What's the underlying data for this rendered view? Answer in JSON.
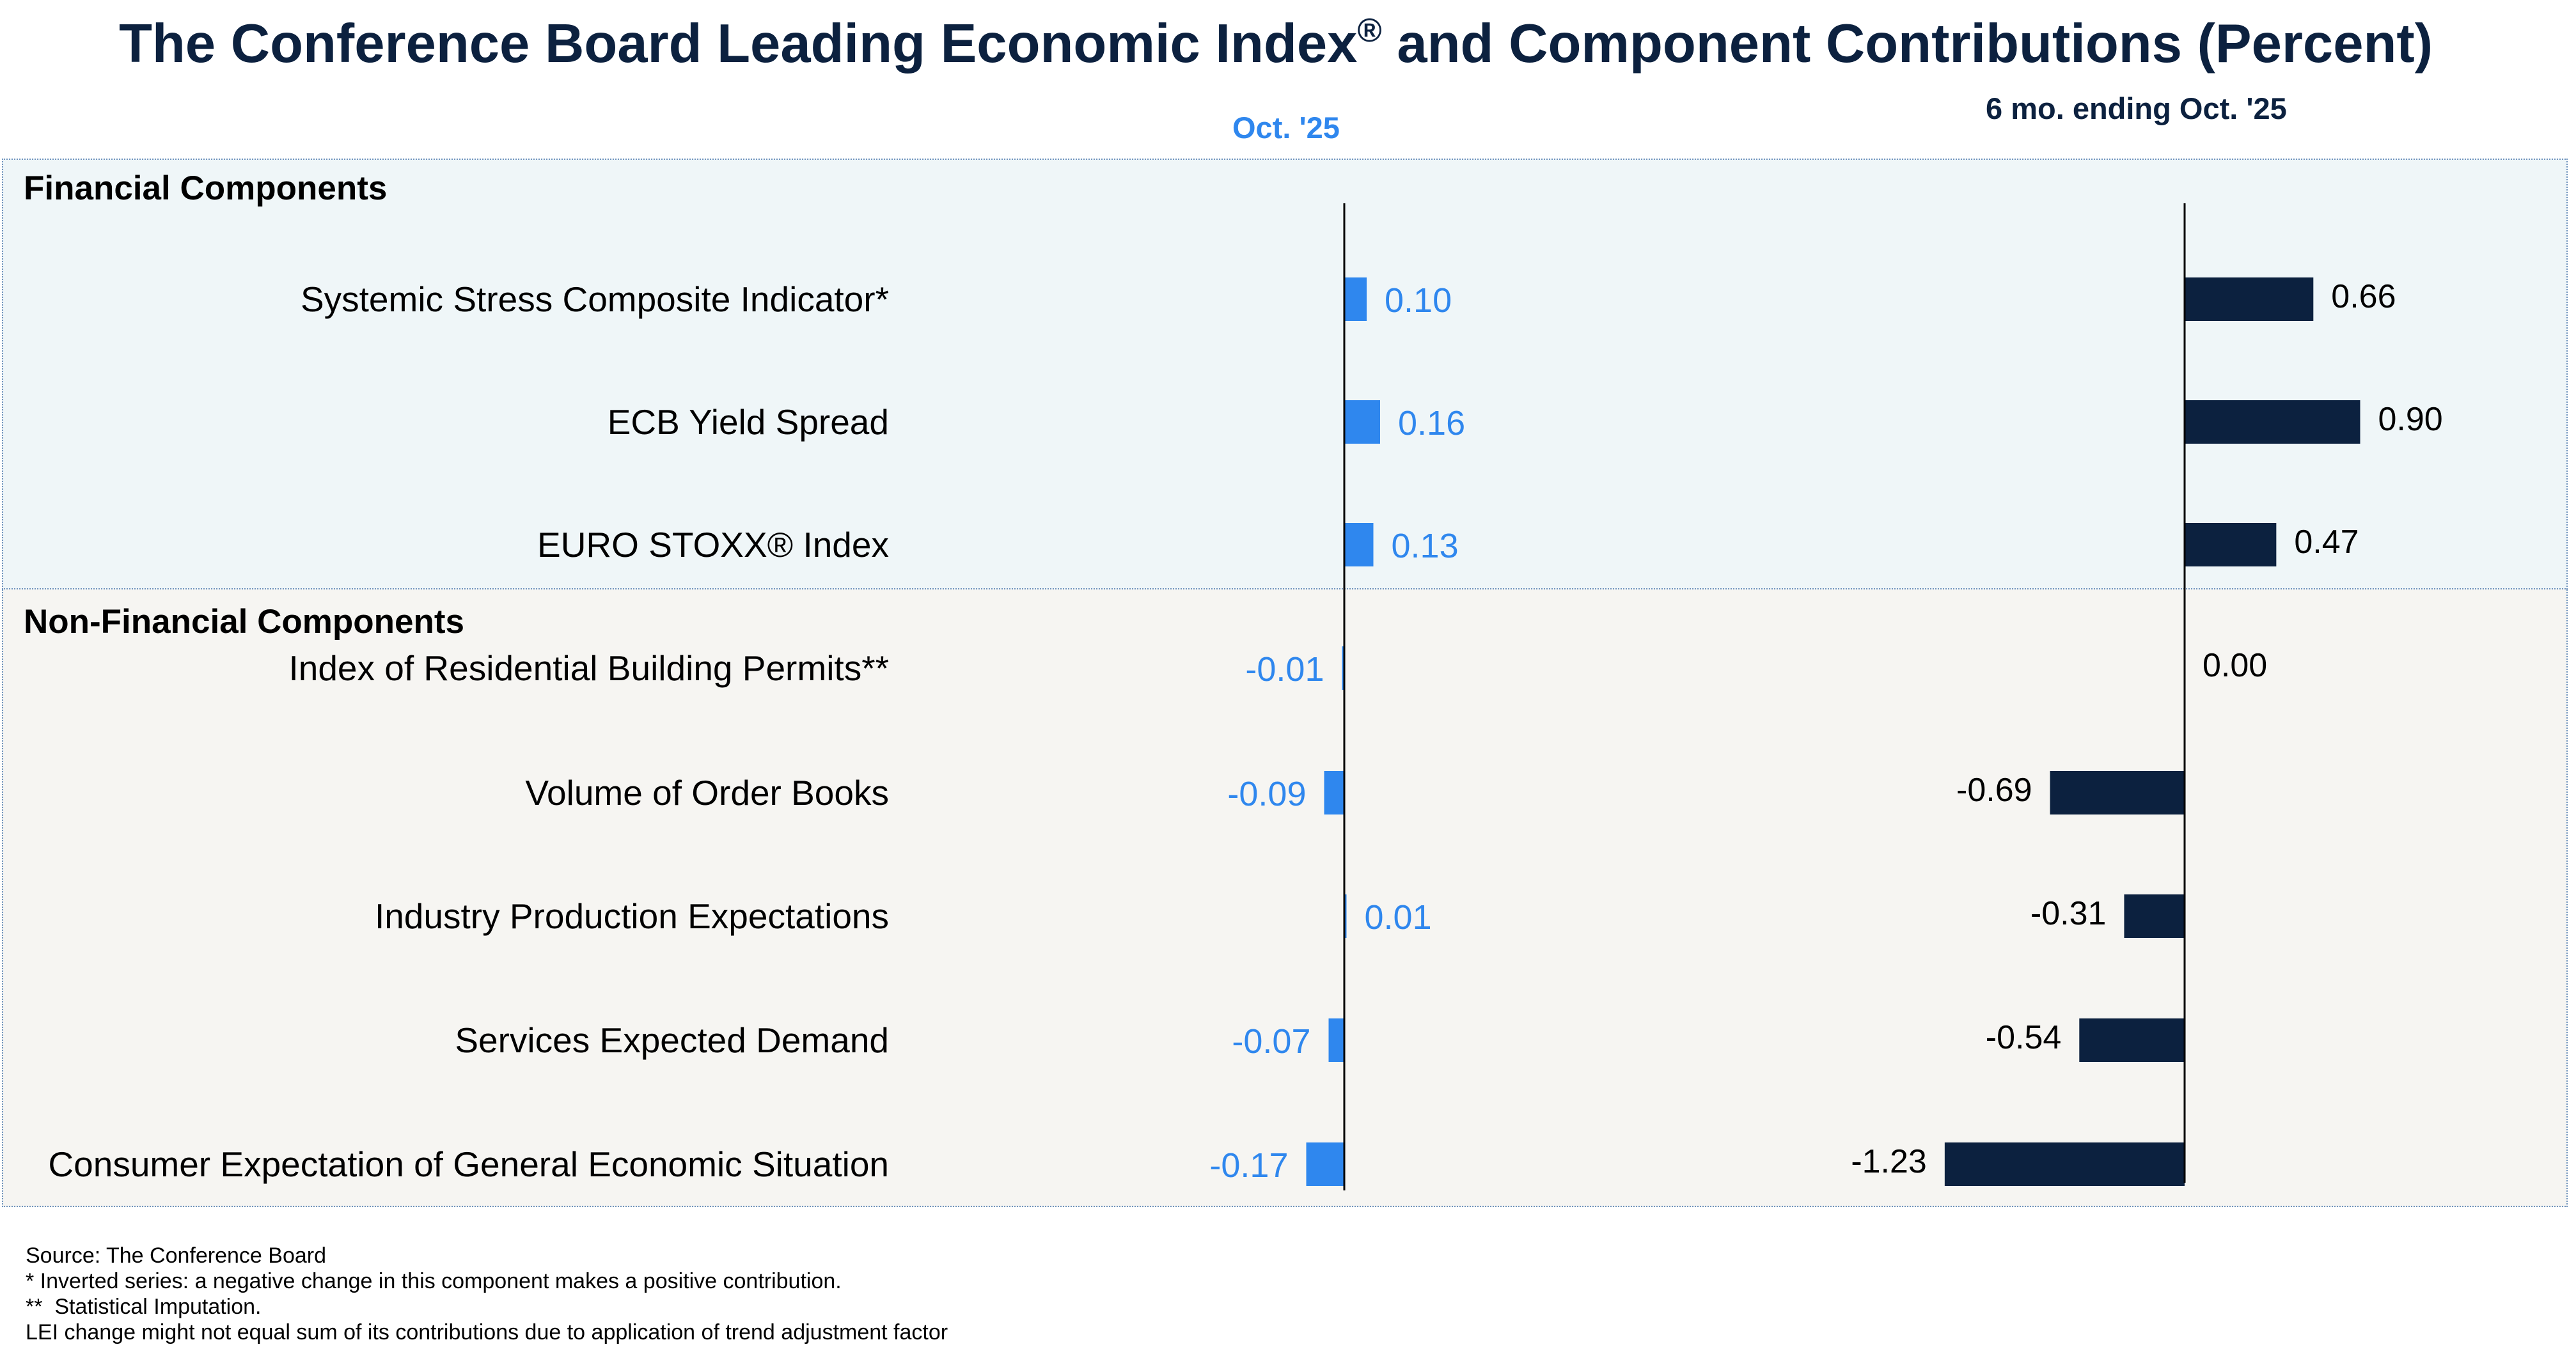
{
  "header": {
    "title_main": "The Conference Board Leading Economic Index",
    "title_sup": "®",
    "title_tail": " and Component Contributions (Percent)"
  },
  "sections": {
    "financial": "Financial Components",
    "non_financial": "Non-Financial Components"
  },
  "chart_data": {
    "type": "bar",
    "orientation": "horizontal",
    "title": "The Conference Board Leading Economic Index® and Component Contributions (Percent)",
    "categories": [
      "Systemic Stress Composite Indicator*",
      "ECB Yield Spread",
      "EURO STOXX® Index",
      "Index of Residential Building Permits**",
      "Volume of Order Books",
      "Industry Production Expectations",
      "Services Expected Demand",
      "Consumer Expectation of General Economic Situation"
    ],
    "series": [
      {
        "name": "Oct. '25",
        "color": "#2f87ee",
        "values": [
          0.1,
          0.16,
          0.13,
          -0.01,
          -0.09,
          0.01,
          -0.07,
          -0.17
        ],
        "labels": [
          "0.10",
          "0.16",
          "0.13",
          "-0.01",
          "-0.09",
          "0.01",
          "-0.07",
          "-0.17"
        ]
      },
      {
        "name": "6 mo. ending Oct. '25",
        "color": "#0c213f",
        "values": [
          0.66,
          0.9,
          0.47,
          0.0,
          -0.69,
          -0.31,
          -0.54,
          -1.23
        ],
        "labels": [
          "0.66",
          "0.90",
          "0.47",
          "0.00",
          "-0.69",
          "-0.31",
          "-0.54",
          "-1.23"
        ]
      }
    ],
    "grid": false,
    "legend": "none"
  },
  "footnotes": [
    "Source: The Conference Board",
    "* Inverted series: a negative change in this component makes a positive contribution.",
    "**  Statistical Imputation.",
    "LEI change might not equal sum of its contributions due to application of trend adjustment factor"
  ]
}
